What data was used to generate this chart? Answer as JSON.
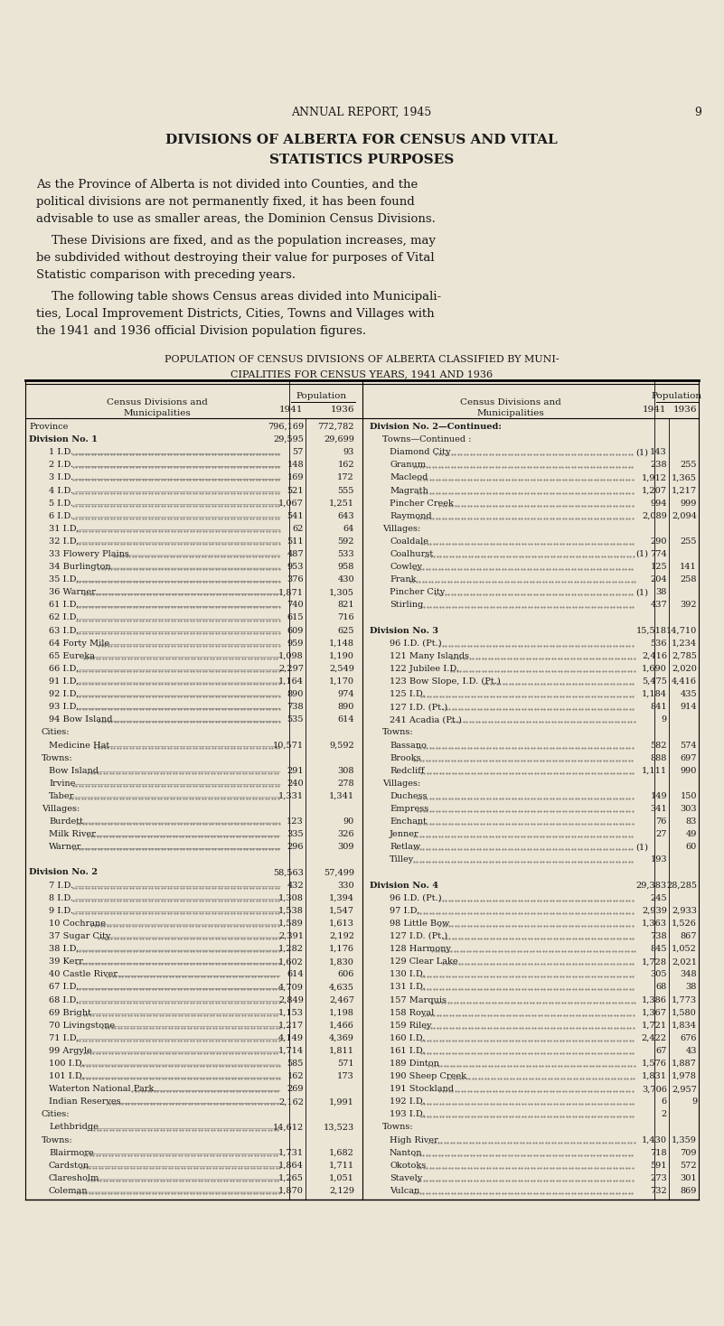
{
  "bg_color": "#EAE5D5",
  "text_color": "#1a1a1a",
  "header_line1": "ANNUAL REPORT, 1945",
  "header_page": "9",
  "title_line1": "DIVISIONS OF ALBERTA FOR CENSUS AND VITAL",
  "title_line2": "STATISTICS PURPOSES",
  "para1": "As the Province of Alberta is not divided into Counties, and the political divisions are not permanently fixed, it has been found advisable to use as smaller areas, the Dominion Census Divisions.",
  "para2": "These Divisions are fixed, and as the population increases, may be subdivided without destroying their value for purposes of Vital Statistic comparison with preceding years.",
  "para3": "The following table shows Census areas divided into Municipalities, Local Improvement Districts, Cities, Towns and Villages with the 1941 and 1936 official Division population figures.",
  "table_title1": "POPULATION OF CENSUS DIVISIONS OF ALBERTA CLASSIFIED BY MUNI-",
  "table_title2": "CIPALITIES FOR CENSUS YEARS, 1941 AND 1936",
  "left_col": [
    [
      "Province",
      "",
      "796,169",
      "772,782",
      false
    ],
    [
      "Division No. 1",
      "",
      "29,595",
      "29,699",
      true
    ],
    [
      "1 I.D.",
      "",
      "57",
      "93",
      false
    ],
    [
      "2 I.D.",
      "",
      "148",
      "162",
      false
    ],
    [
      "3 I.D.",
      "",
      "169",
      "172",
      false
    ],
    [
      "4 I.D.",
      "",
      "521",
      "555",
      false
    ],
    [
      "5 I.D.",
      "",
      "1,067",
      "1,251",
      false
    ],
    [
      "6 I.D.",
      "",
      "541",
      "643",
      false
    ],
    [
      "31 I.D.",
      "",
      "62",
      "64",
      false
    ],
    [
      "32 I.D.",
      "",
      "511",
      "592",
      false
    ],
    [
      "33 Flowery Plains",
      "",
      "487",
      "533",
      false
    ],
    [
      "34 Burlington",
      "",
      "953",
      "958",
      false
    ],
    [
      "35 I.D.",
      "",
      "376",
      "430",
      false
    ],
    [
      "36 Warner",
      "",
      "1,871",
      "1,305",
      false
    ],
    [
      "61 I.D.",
      "",
      "740",
      "821",
      false
    ],
    [
      "62 I.D.",
      "",
      "615",
      "716",
      false
    ],
    [
      "63 I.D.",
      "",
      "609",
      "625",
      false
    ],
    [
      "64 Forty Mile",
      "",
      "959",
      "1,148",
      false
    ],
    [
      "65 Eureka",
      "",
      "1,098",
      "1,190",
      false
    ],
    [
      "66 I.D.",
      "",
      "2,297",
      "2,549",
      false
    ],
    [
      "91 I.D.",
      "",
      "1,164",
      "1,170",
      false
    ],
    [
      "92 I.D.",
      "",
      "890",
      "974",
      false
    ],
    [
      "93 I.D.",
      "",
      "738",
      "890",
      false
    ],
    [
      "94 Bow Island",
      "",
      "535",
      "614",
      false
    ],
    [
      "Cities:",
      "",
      "",
      "",
      false
    ],
    [
      "Medicine Hat",
      "",
      "10,571",
      "9,592",
      false
    ],
    [
      "Towns:",
      "",
      "",
      "",
      false
    ],
    [
      "Bow Island",
      "",
      "291",
      "308",
      false
    ],
    [
      "Irvine",
      "",
      "240",
      "278",
      false
    ],
    [
      "Taber",
      "",
      "1,331",
      "1,341",
      false
    ],
    [
      "Villages:",
      "",
      "",
      "",
      false
    ],
    [
      "Burdett",
      "",
      "123",
      "90",
      false
    ],
    [
      "Milk River",
      "",
      "335",
      "326",
      false
    ],
    [
      "Warner",
      "",
      "296",
      "309",
      false
    ],
    [
      "",
      "",
      "",
      "",
      false
    ],
    [
      "Division No. 2",
      "",
      "58,563",
      "57,499",
      true
    ],
    [
      "7 I.D.",
      "",
      "432",
      "330",
      false
    ],
    [
      "8 I.D.",
      "",
      "1,308",
      "1,394",
      false
    ],
    [
      "9 I.D.",
      "",
      "1,538",
      "1,547",
      false
    ],
    [
      "10 Cochrane",
      "",
      "1,589",
      "1,613",
      false
    ],
    [
      "37 Sugar City",
      "",
      "2,391",
      "2,192",
      false
    ],
    [
      "38 I.D.",
      "",
      "1,282",
      "1,176",
      false
    ],
    [
      "39 Kerr",
      "",
      "1,602",
      "1,830",
      false
    ],
    [
      "40 Castle River",
      "",
      "614",
      "606",
      false
    ],
    [
      "67 I.D.",
      "",
      "4,709",
      "4,635",
      false
    ],
    [
      "68 I.D.",
      "",
      "2,849",
      "2,467",
      false
    ],
    [
      "69 Bright",
      "",
      "1,153",
      "1,198",
      false
    ],
    [
      "70 Livingstone",
      "",
      "1,217",
      "1,466",
      false
    ],
    [
      "71 I.D.",
      "",
      "4,149",
      "4,369",
      false
    ],
    [
      "99 Argyle",
      "",
      "1,714",
      "1,811",
      false
    ],
    [
      "100 I.D.",
      "",
      "585",
      "571",
      false
    ],
    [
      "101 I.D.",
      "",
      "162",
      "173",
      false
    ],
    [
      "Waterton National Park",
      "",
      "269",
      "",
      false
    ],
    [
      "Indian Reserves",
      "",
      "2,162",
      "1,991",
      false
    ],
    [
      "Cities:",
      "",
      "",
      "",
      false
    ],
    [
      "Lethbridge",
      "",
      "14,612",
      "13,523",
      false
    ],
    [
      "Towns:",
      "",
      "",
      "",
      false
    ],
    [
      "Blairmore",
      "",
      "1,731",
      "1,682",
      false
    ],
    [
      "Cardston",
      "",
      "1,864",
      "1,711",
      false
    ],
    [
      "Claresholm",
      "",
      "1,265",
      "1,051",
      false
    ],
    [
      "Coleman",
      "",
      "1,870",
      "2,129",
      false
    ]
  ],
  "right_col": [
    [
      "Division No. 2—Continued:",
      "",
      "",
      "",
      true
    ],
    [
      "Towns—Continued :",
      "",
      "",
      "",
      false
    ],
    [
      "Diamond City",
      "(1)",
      "143",
      "",
      false
    ],
    [
      "Granum",
      "",
      "238",
      "255",
      false
    ],
    [
      "Macleod",
      "",
      "1,912",
      "1,365",
      false
    ],
    [
      "Magrath",
      "",
      "1,207",
      "1,217",
      false
    ],
    [
      "Pincher Creek",
      "",
      "994",
      "999",
      false
    ],
    [
      "Raymond",
      "",
      "2,089",
      "2,094",
      false
    ],
    [
      "Villages:",
      "",
      "",
      "",
      false
    ],
    [
      "Coaldale",
      "",
      "290",
      "255",
      false
    ],
    [
      "Coalhurst",
      "(1)",
      "774",
      "",
      false
    ],
    [
      "Cowley",
      "",
      "125",
      "141",
      false
    ],
    [
      "Frank",
      "",
      "204",
      "258",
      false
    ],
    [
      "Pincher City",
      "(1)",
      "38",
      "",
      false
    ],
    [
      "Stirling",
      "",
      "437",
      "392",
      false
    ],
    [
      "",
      "",
      "",
      "",
      false
    ],
    [
      "Division No. 3",
      "",
      "15,518",
      "14,710",
      true
    ],
    [
      "96 I.D. (Pt.)",
      "",
      "536",
      "1,234",
      false
    ],
    [
      "121 Many Islands",
      "",
      "2,416",
      "2,785",
      false
    ],
    [
      "122 Jubilee I.D.",
      "",
      "1,690",
      "2,020",
      false
    ],
    [
      "123 Bow Slope, I.D. (Pt.)",
      "",
      "5,475",
      "4,416",
      false
    ],
    [
      "125 I.D.",
      "",
      "1,184",
      "435",
      false
    ],
    [
      "127 I.D. (Pt.)",
      "",
      "841",
      "914",
      false
    ],
    [
      "241 Acadia (Pt.)",
      "",
      "9",
      "",
      false
    ],
    [
      "Towns:",
      "",
      "",
      "",
      false
    ],
    [
      "Bassano",
      "",
      "582",
      "574",
      false
    ],
    [
      "Brooks",
      "",
      "888",
      "697",
      false
    ],
    [
      "Redcliff",
      "",
      "1,111",
      "990",
      false
    ],
    [
      "Villages:",
      "",
      "",
      "",
      false
    ],
    [
      "Duchess",
      "",
      "149",
      "150",
      false
    ],
    [
      "Empress",
      "",
      "341",
      "303",
      false
    ],
    [
      "Enchant",
      "",
      "76",
      "83",
      false
    ],
    [
      "Jenner",
      "",
      "27",
      "49",
      false
    ],
    [
      "Retlaw",
      "(1)",
      "",
      "60",
      false
    ],
    [
      "Tilley",
      "",
      "193",
      "",
      false
    ],
    [
      "",
      "",
      "",
      "",
      false
    ],
    [
      "Division No. 4",
      "",
      "29,383",
      "28,285",
      true
    ],
    [
      "96 I.D. (Pt.)",
      "",
      "245",
      "",
      false
    ],
    [
      "97 I.D.",
      "",
      "2,939",
      "2,933",
      false
    ],
    [
      "98 Little Bow",
      "",
      "1,363",
      "1,526",
      false
    ],
    [
      "127 I.D. (Pt.)",
      "",
      "738",
      "867",
      false
    ],
    [
      "128 Harmony",
      "",
      "845",
      "1,052",
      false
    ],
    [
      "129 Clear Lake",
      "",
      "1,728",
      "2,021",
      false
    ],
    [
      "130 I.D.",
      "",
      "305",
      "348",
      false
    ],
    [
      "131 I.D.",
      "",
      "68",
      "38",
      false
    ],
    [
      "157 Marquis",
      "",
      "1,386",
      "1,773",
      false
    ],
    [
      "158 Royal",
      "",
      "1,367",
      "1,580",
      false
    ],
    [
      "159 Riley",
      "",
      "1,721",
      "1,834",
      false
    ],
    [
      "160 I.D.",
      "",
      "2,422",
      "676",
      false
    ],
    [
      "161 I.D.",
      "",
      "67",
      "43",
      false
    ],
    [
      "189 Dinton",
      "",
      "1,576",
      "1,887",
      false
    ],
    [
      "190 Sheep Creek",
      "",
      "1,831",
      "1,978",
      false
    ],
    [
      "191 Stockland",
      "",
      "3,706",
      "2,957",
      false
    ],
    [
      "192 I.D.",
      "",
      "6",
      "9",
      false
    ],
    [
      "193 I.D.",
      "",
      "2",
      "",
      false
    ],
    [
      "Towns:",
      "",
      "",
      "",
      false
    ],
    [
      "High River",
      "",
      "1,430",
      "1,359",
      false
    ],
    [
      "Nanton",
      "",
      "718",
      "709",
      false
    ],
    [
      "Okotoks",
      "",
      "591",
      "572",
      false
    ],
    [
      "Stavely",
      "",
      "273",
      "301",
      false
    ],
    [
      "Vulcan",
      "",
      "732",
      "869",
      false
    ]
  ]
}
